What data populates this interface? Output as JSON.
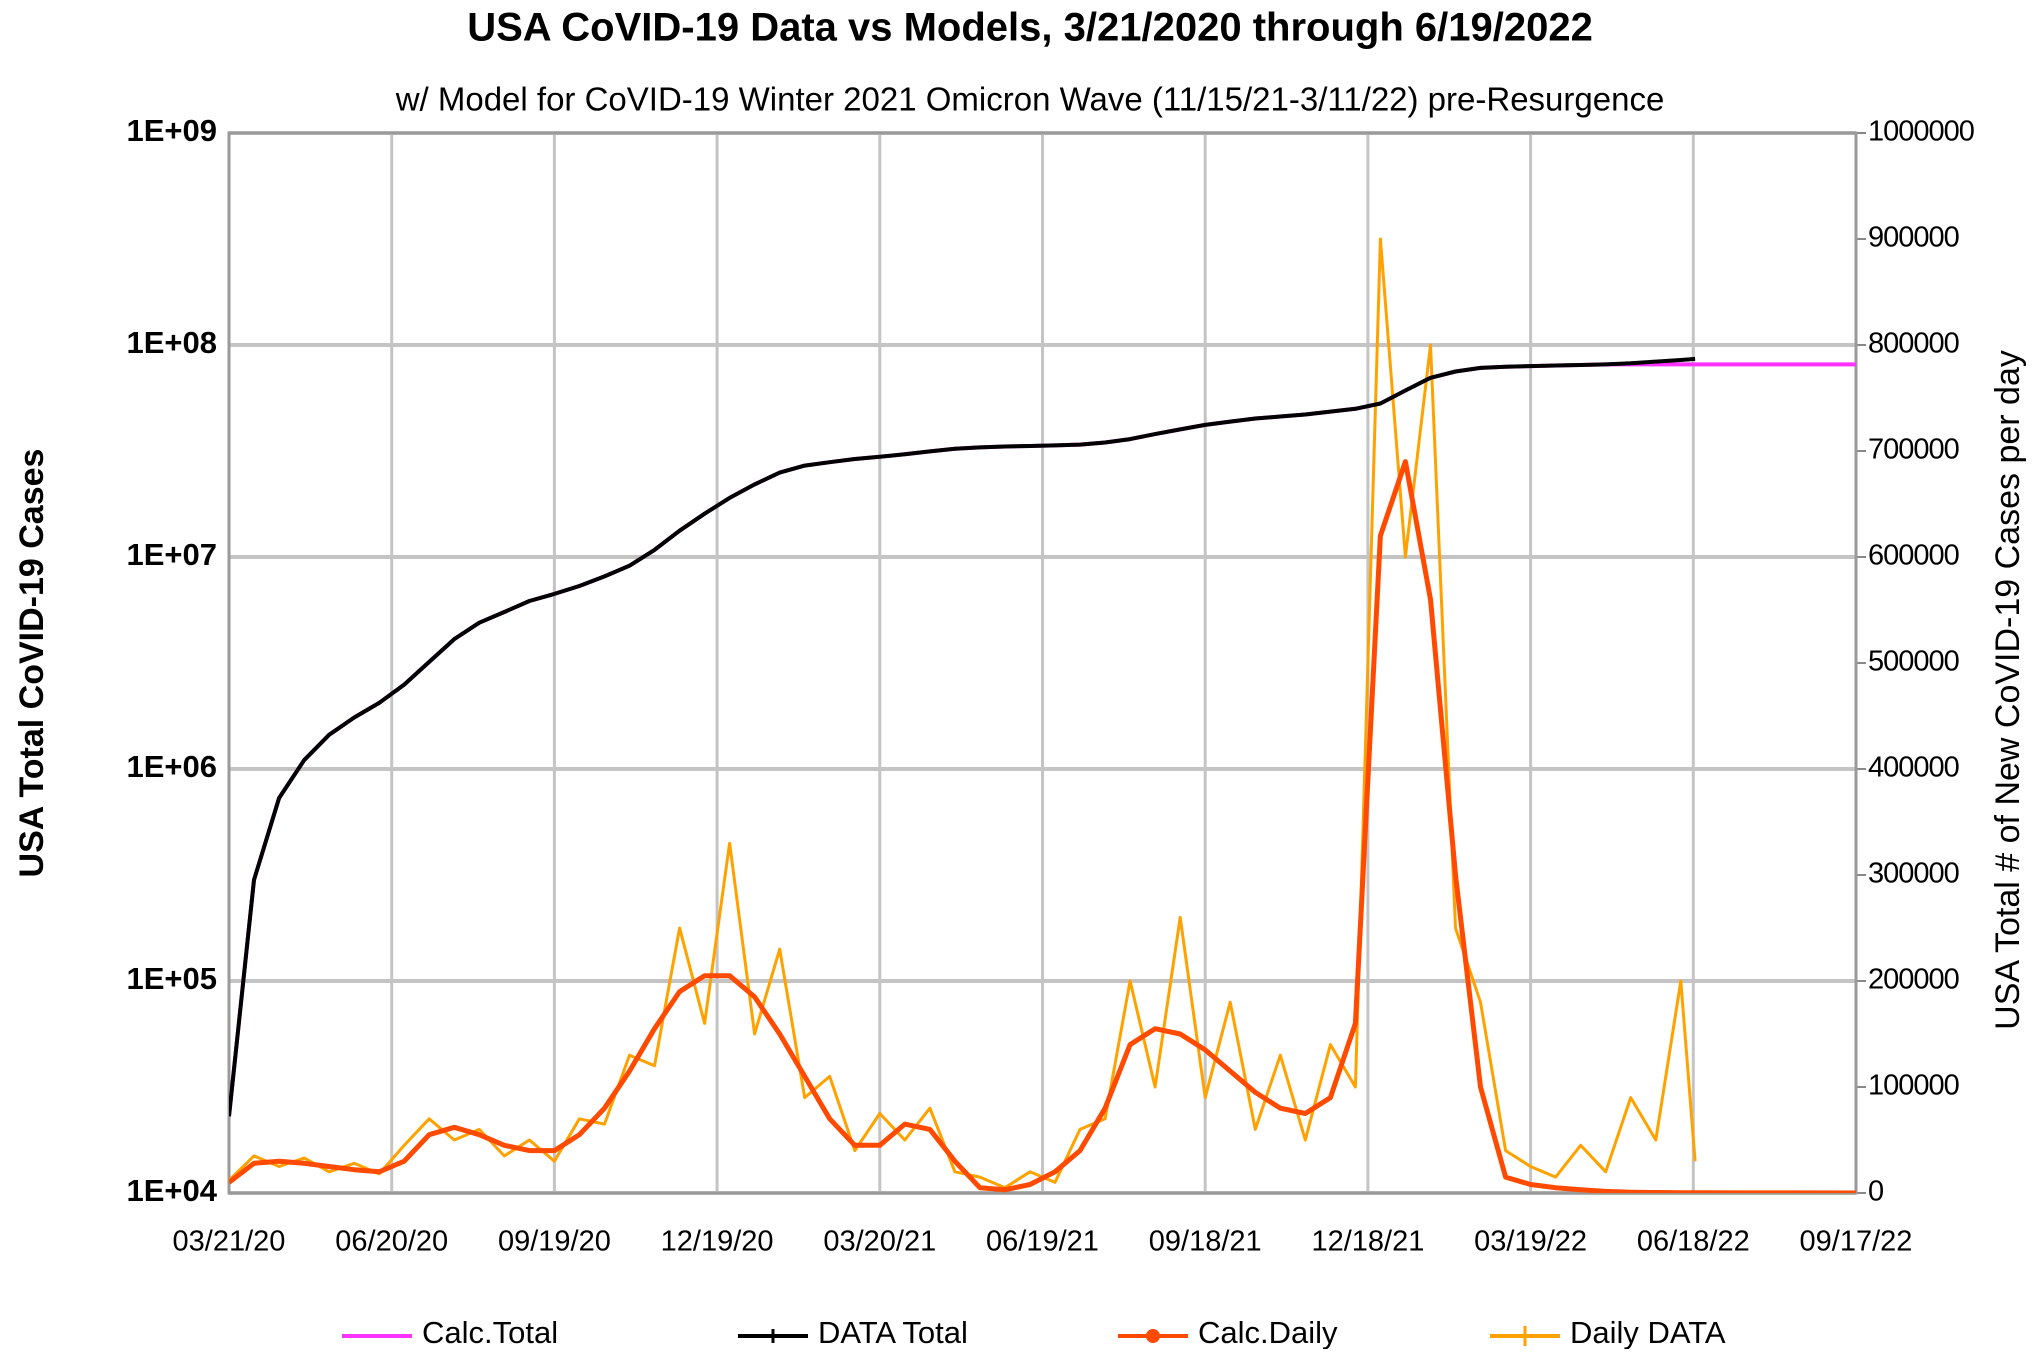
{
  "chart_data": {
    "type": "line",
    "title": "USA CoVID-19 Data vs Models, 3/21/2020 through 6/19/2022",
    "subtitle": "w/ Model for CoVID-19 Winter 2021 Omicron Wave (11/15/21-3/11/22) pre-Resurgence",
    "y_label": "USA Total CoVID-19 Cases",
    "y2_label": "USA Total # of New CoVID-19 Cases per day",
    "y_log": true,
    "grid": true,
    "legend": "bottom",
    "xlim": [
      "03/21/20",
      "09/17/22"
    ],
    "xticks": [
      "03/21/20",
      "06/20/20",
      "09/19/20",
      "12/19/20",
      "03/20/21",
      "06/19/21",
      "09/18/21",
      "12/18/21",
      "03/19/22",
      "06/18/22",
      "09/17/22"
    ],
    "ylim": [
      10000,
      1000000000
    ],
    "yticks": [
      {
        "value": 10000,
        "label": "1E+04"
      },
      {
        "value": 100000,
        "label": "1E+05"
      },
      {
        "value": 1000000,
        "label": "1E+06"
      },
      {
        "value": 10000000,
        "label": "1E+07"
      },
      {
        "value": 100000000,
        "label": "1E+08"
      },
      {
        "value": 1000000000,
        "label": "1E+09"
      }
    ],
    "y2lim": [
      0,
      1000000
    ],
    "y2ticks": [
      0,
      100000,
      200000,
      300000,
      400000,
      500000,
      600000,
      700000,
      800000,
      900000,
      1000000
    ],
    "x": [
      "03/21/20",
      "04/04/20",
      "04/18/20",
      "05/02/20",
      "05/16/20",
      "05/30/20",
      "06/13/20",
      "06/27/20",
      "07/11/20",
      "07/25/20",
      "08/08/20",
      "08/22/20",
      "09/05/20",
      "09/19/20",
      "10/03/20",
      "10/17/20",
      "10/31/20",
      "11/14/20",
      "11/28/20",
      "12/12/20",
      "12/26/20",
      "01/09/21",
      "01/23/21",
      "02/06/21",
      "02/20/21",
      "03/06/21",
      "03/20/21",
      "04/03/21",
      "04/17/21",
      "05/01/21",
      "05/15/21",
      "05/29/21",
      "06/12/21",
      "06/26/21",
      "07/10/21",
      "07/24/21",
      "08/07/21",
      "08/21/21",
      "09/04/21",
      "09/18/21",
      "10/02/21",
      "10/16/21",
      "10/30/21",
      "11/13/21",
      "11/27/21",
      "12/11/21",
      "12/25/21",
      "01/08/22",
      "01/22/22",
      "02/05/22",
      "02/19/22",
      "03/05/22",
      "03/19/22",
      "04/02/22",
      "04/16/22",
      "04/30/22",
      "05/14/22",
      "05/28/22",
      "06/11/22",
      "06/19/22",
      "07/16/22",
      "08/13/22",
      "09/17/22"
    ],
    "series": [
      {
        "name": "Calc.Total",
        "color": "#ff33ff",
        "axis": "y",
        "values": [
          23000,
          300000,
          730000,
          1100000,
          1450000,
          1750000,
          2050000,
          2500000,
          3200000,
          4100000,
          4900000,
          5500000,
          6200000,
          6700000,
          7300000,
          8100000,
          9100000,
          10800000,
          13300000,
          16000000,
          19000000,
          22000000,
          25000000,
          27000000,
          28000000,
          29000000,
          29700000,
          30500000,
          31500000,
          32400000,
          32900000,
          33200000,
          33400000,
          33600000,
          33900000,
          34700000,
          36000000,
          38000000,
          40000000,
          42000000,
          43500000,
          45000000,
          46000000,
          47000000,
          48500000,
          50000000,
          53000000,
          61000000,
          70000000,
          75000000,
          78000000,
          79000000,
          79500000,
          80000000,
          80500000,
          81000000,
          81000000,
          81000000,
          81000000,
          81000000,
          81000000,
          81000000,
          81000000
        ]
      },
      {
        "name": "DATA Total",
        "color": "#000000",
        "axis": "y",
        "values": [
          23000,
          300000,
          730000,
          1100000,
          1450000,
          1750000,
          2050000,
          2500000,
          3200000,
          4100000,
          4900000,
          5500000,
          6200000,
          6700000,
          7300000,
          8100000,
          9100000,
          10800000,
          13300000,
          16000000,
          19000000,
          22000000,
          25000000,
          27000000,
          28000000,
          29000000,
          29700000,
          30500000,
          31500000,
          32400000,
          32900000,
          33200000,
          33400000,
          33600000,
          33900000,
          34700000,
          36000000,
          38000000,
          40000000,
          42000000,
          43500000,
          45000000,
          46000000,
          47000000,
          48500000,
          50000000,
          53000000,
          61000000,
          70000000,
          75000000,
          78000000,
          79000000,
          79500000,
          80000000,
          80500000,
          81000000,
          82000000,
          83500000,
          85000000,
          86000000,
          null,
          null,
          null
        ]
      },
      {
        "name": "Calc.Daily",
        "color": "#ff4a00",
        "axis": "y2",
        "values": [
          10000,
          28000,
          30000,
          28000,
          25000,
          22000,
          20000,
          30000,
          55000,
          62000,
          55000,
          45000,
          40000,
          40000,
          55000,
          80000,
          115000,
          155000,
          190000,
          205000,
          205000,
          185000,
          150000,
          110000,
          70000,
          45000,
          45000,
          65000,
          60000,
          30000,
          5000,
          3000,
          8000,
          20000,
          40000,
          80000,
          140000,
          155000,
          150000,
          135000,
          115000,
          95000,
          80000,
          75000,
          90000,
          160000,
          620000,
          690000,
          560000,
          300000,
          100000,
          15000,
          8000,
          5000,
          3000,
          1500,
          800,
          500,
          300,
          200,
          100,
          50,
          20
        ]
      },
      {
        "name": "Daily DATA",
        "color": "#ffa200",
        "axis": "y2",
        "values": [
          12000,
          35000,
          25000,
          33000,
          20000,
          28000,
          18000,
          45000,
          70000,
          50000,
          60000,
          35000,
          50000,
          30000,
          70000,
          65000,
          130000,
          120000,
          250000,
          160000,
          330000,
          150000,
          230000,
          90000,
          110000,
          40000,
          75000,
          50000,
          80000,
          20000,
          15000,
          5000,
          20000,
          10000,
          60000,
          70000,
          200000,
          100000,
          260000,
          90000,
          180000,
          60000,
          130000,
          50000,
          140000,
          100000,
          900000,
          600000,
          800000,
          250000,
          180000,
          40000,
          25000,
          15000,
          45000,
          20000,
          90000,
          50000,
          200000,
          30000,
          null,
          null,
          null
        ]
      }
    ]
  }
}
